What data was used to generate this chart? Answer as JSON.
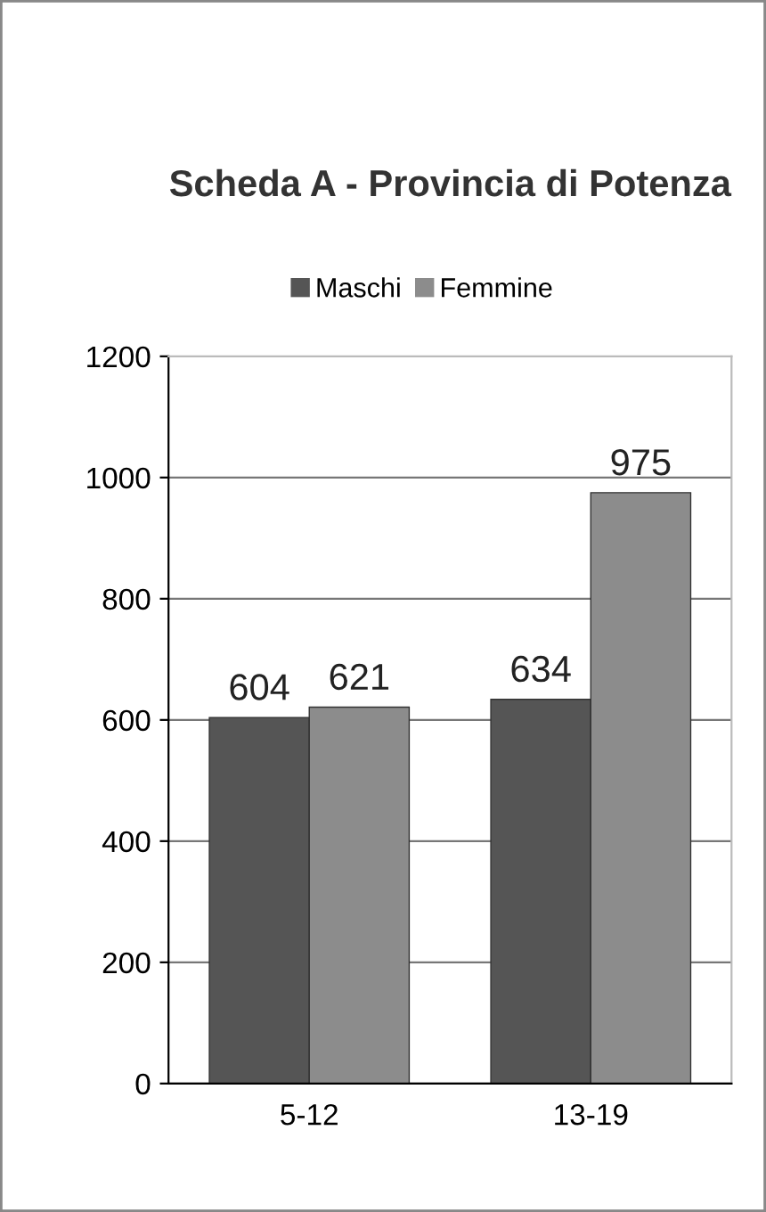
{
  "chart_data": {
    "type": "bar",
    "title": "Scheda A - Provincia di Potenza",
    "categories": [
      "5-12",
      "13-19"
    ],
    "series": [
      {
        "name": "Maschi",
        "color": "#555555",
        "values": [
          604,
          634
        ]
      },
      {
        "name": "Femmine",
        "color": "#8c8c8c",
        "values": [
          621,
          975
        ]
      }
    ],
    "ylim": [
      0,
      1200
    ],
    "yticks": [
      0,
      200,
      400,
      600,
      800,
      1000,
      1200
    ],
    "grid": "y",
    "legend": "top",
    "data_labels": true
  }
}
